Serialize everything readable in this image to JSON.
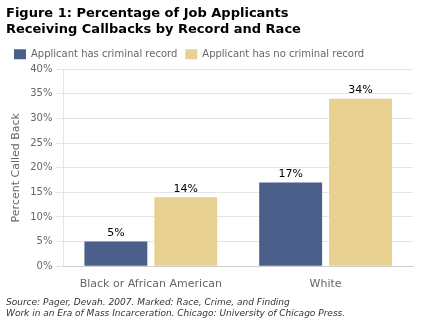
{
  "chart_data": {
    "type": "bar",
    "title": [
      "Figure 1: Percentage of Job Applicants",
      "Receiving Callbacks by Record and Race"
    ],
    "ylabel": "Percent Called Back",
    "categories": [
      "Black or African American",
      "White"
    ],
    "series": [
      {
        "name": "Applicant has criminal record",
        "color": "#4a5f8a",
        "values": [
          5,
          17
        ],
        "value_labels": [
          "5%",
          "17%"
        ]
      },
      {
        "name": "Applicant has no criminal record",
        "color": "#e8d090",
        "values": [
          14,
          34
        ],
        "value_labels": [
          "14%",
          "34%"
        ]
      }
    ],
    "ylim": [
      0,
      40
    ],
    "yticks": [
      {
        "value": 0,
        "label": "0%"
      },
      {
        "value": 5,
        "label": "5%"
      },
      {
        "value": 10,
        "label": "10%"
      },
      {
        "value": 15,
        "label": "15%"
      },
      {
        "value": 20,
        "label": "20%"
      },
      {
        "value": 25,
        "label": "25%"
      },
      {
        "value": 30,
        "label": "30%"
      },
      {
        "value": 35,
        "label": "35%"
      },
      {
        "value": 40,
        "label": "40%"
      }
    ],
    "grid": true,
    "legend": "upper left",
    "data_labels": true,
    "annotations": [
      "Source: Pager, Devah. 2007. Marked: Race, Crime, and Finding\nWork in an Era of Mass Incarceration. Chicago: University of Chicago Press."
    ]
  }
}
